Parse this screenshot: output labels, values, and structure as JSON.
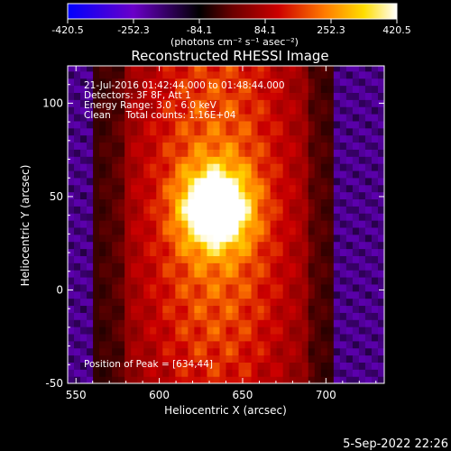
{
  "chart_data": {
    "type": "heatmap",
    "title": "Reconstructed RHESSI Image",
    "xlabel": "Heliocentric X (arcsec)",
    "ylabel": "Heliocentric Y (arcsec)",
    "xlim": [
      545,
      735
    ],
    "ylim": [
      -50,
      120
    ],
    "x_ticks": [
      "550",
      "600",
      "650",
      "700"
    ],
    "y_ticks": [
      "-50",
      "0",
      "50",
      "100"
    ],
    "colorbar": {
      "range": [
        -420.5,
        420.5
      ],
      "tick_labels": [
        "-420.5",
        "-252.3",
        "-84.1",
        "84.1",
        "252.3",
        "420.5"
      ],
      "unit_label": "(photons cm⁻² s⁻¹ asec⁻²)",
      "colormap": [
        "#0000ff",
        "#6a00c8",
        "#000000",
        "#6a0000",
        "#cc0000",
        "#ff7a00",
        "#ffdd00",
        "#ffffff"
      ]
    },
    "annotations": [
      "21-Jul-2016 01:42:44.000 to 01:48:44.000",
      "Detectors: 3F 8F, Att 1",
      "Energy Range: 3.0 - 6.0 keV",
      "Clean     Total counts: 1.16E+04"
    ],
    "peak_label": "Position of Peak = [634,44]",
    "peak": {
      "x": 634,
      "y": 44,
      "value": 420.5
    }
  },
  "footer": {
    "date": "5-Sep-2022 22:26"
  }
}
